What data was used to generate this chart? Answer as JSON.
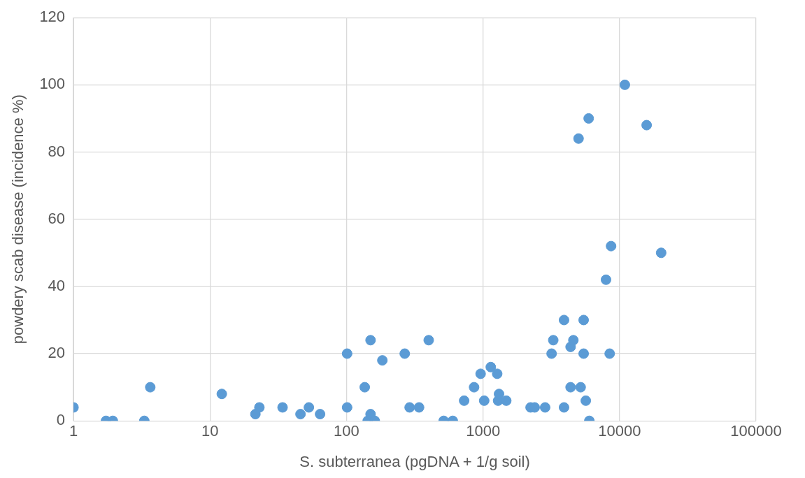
{
  "chart_data": {
    "type": "scatter",
    "xlabel": "S. subterranea (pgDNA + 1/g soil)",
    "ylabel": "powdery scab disease (incidence %)",
    "log": "x",
    "xlim": [
      1,
      100000
    ],
    "xticks": [
      1,
      10,
      100,
      1000,
      10000,
      100000
    ],
    "ylim": [
      0,
      120
    ],
    "yticks": [
      0,
      20,
      40,
      60,
      80,
      100,
      120
    ],
    "grid": true,
    "legend": false,
    "marker": "circle",
    "series": [
      {
        "color": "#5b9bd5",
        "x": [
          1,
          1.73,
          1.94,
          3.3,
          3.65,
          12.2,
          21.5,
          23,
          34,
          46,
          53,
          64,
          101,
          101,
          136,
          143,
          150,
          150,
          161,
          183,
          267,
          290,
          340,
          400,
          515,
          600,
          727,
          860,
          960,
          1020,
          1140,
          1270,
          1290,
          1310,
          1480,
          2230,
          2390,
          2850,
          3180,
          3270,
          3920,
          3920,
          4380,
          4380,
          4590,
          5010,
          5190,
          5460,
          5460,
          5660,
          5940,
          6010,
          7960,
          8470,
          8670,
          10940,
          15800,
          20180
        ],
        "values": [
          4,
          0,
          0,
          0,
          10,
          8,
          2,
          4,
          4,
          2,
          4,
          2,
          20,
          4,
          10,
          0,
          24,
          2,
          0,
          18,
          20,
          4,
          4,
          24,
          0,
          0,
          6,
          10,
          14,
          6,
          16,
          14,
          6,
          8,
          6,
          4,
          4,
          4,
          20,
          24,
          30,
          4,
          22,
          10,
          24,
          84,
          10,
          30,
          20,
          6,
          90,
          0,
          42,
          20,
          52,
          100,
          88,
          50
        ]
      }
    ]
  }
}
